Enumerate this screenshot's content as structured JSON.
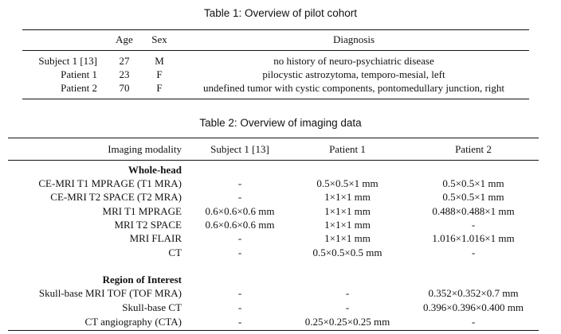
{
  "table1": {
    "caption": "Table 1: Overview of pilot cohort",
    "headers": [
      "",
      "Age",
      "Sex",
      "Diagnosis"
    ],
    "rows": [
      [
        "Subject 1 [13]",
        "27",
        "M",
        "no history of neuro-psychiatric disease"
      ],
      [
        "Patient 1",
        "23",
        "F",
        "pilocystic astrozytoma, temporo-mesial, left"
      ],
      [
        "Patient 2",
        "70",
        "F",
        "undefined tumor with cystic components, pontomedullary junction, right"
      ]
    ]
  },
  "table2": {
    "caption": "Table 2: Overview of imaging data",
    "headers": [
      "Imaging modality",
      "Subject 1 [13]",
      "Patient 1",
      "Patient 2"
    ],
    "section1": {
      "title": "Whole-head",
      "rows": [
        [
          "CE-MRI T1 MPRAGE (T1 MRA)",
          "-",
          "0.5×0.5×1 mm",
          "0.5×0.5×1 mm"
        ],
        [
          "CE-MRI T2 SPACE (T2 MRA)",
          "-",
          "1×1×1 mm",
          "0.5×0.5×1 mm"
        ],
        [
          "MRI T1 MPRAGE",
          "0.6×0.6×0.6 mm",
          "1×1×1 mm",
          "0.488×0.488×1 mm"
        ],
        [
          "MRI T2 SPACE",
          "0.6×0.6×0.6 mm",
          "1×1×1 mm",
          "-"
        ],
        [
          "MRI FLAIR",
          "-",
          "1×1×1 mm",
          "1.016×1.016×1 mm"
        ],
        [
          "CT",
          "-",
          "0.5×0.5×0.5 mm",
          "-"
        ]
      ]
    },
    "section2": {
      "title": "Region of Interest",
      "rows": [
        [
          "Skull-base MRI TOF (TOF MRA)",
          "-",
          "-",
          "0.352×0.352×0.7 mm"
        ],
        [
          "Skull-base CT",
          "-",
          "-",
          "0.396×0.396×0.400 mm"
        ],
        [
          "CT angiography (CTA)",
          "-",
          "0.25×0.25×0.25 mm",
          "-"
        ]
      ]
    }
  }
}
